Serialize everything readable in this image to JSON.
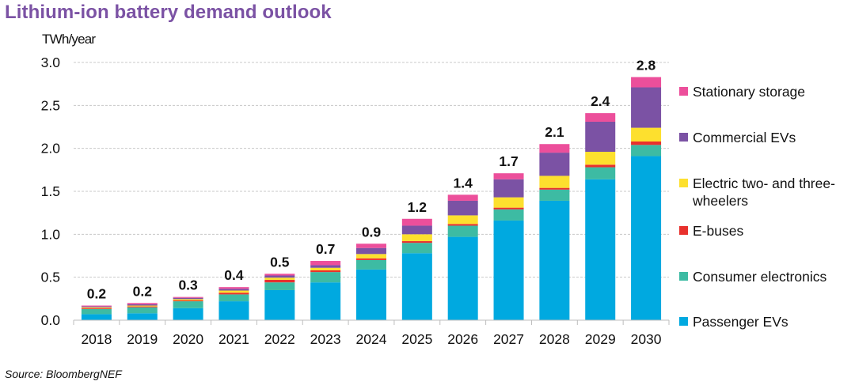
{
  "title": "Lithium-ion battery demand outlook",
  "source": "Source: BloombergNEF",
  "chart_data": {
    "type": "bar",
    "stacked": true,
    "title": "Lithium-ion battery demand outlook",
    "xlabel": "",
    "ylabel": "TWh/year",
    "ylim": [
      0,
      3.0
    ],
    "yticks": [
      "0.0",
      "0.5",
      "1.0",
      "1.5",
      "2.0",
      "2.5",
      "3.0"
    ],
    "ytick_values": [
      0,
      0.5,
      1.0,
      1.5,
      2.0,
      2.5,
      3.0
    ],
    "grid": "horizontal dashed",
    "legend_position": "right",
    "categories": [
      "2018",
      "2019",
      "2020",
      "2021",
      "2022",
      "2023",
      "2024",
      "2025",
      "2026",
      "2027",
      "2028",
      "2029",
      "2030"
    ],
    "totals_labels": [
      "0.2",
      "0.2",
      "0.3",
      "0.4",
      "0.5",
      "0.7",
      "0.9",
      "1.2",
      "1.4",
      "1.7",
      "2.1",
      "2.4",
      "2.8"
    ],
    "series": [
      {
        "name": "Passenger EVs",
        "color": "#00a9e0",
        "values": [
          0.07,
          0.08,
          0.14,
          0.22,
          0.35,
          0.44,
          0.59,
          0.78,
          0.97,
          1.16,
          1.39,
          1.64,
          1.91
        ]
      },
      {
        "name": "Consumer electronics",
        "color": "#3dbba3",
        "values": [
          0.06,
          0.07,
          0.08,
          0.08,
          0.09,
          0.12,
          0.11,
          0.12,
          0.13,
          0.13,
          0.13,
          0.14,
          0.13
        ]
      },
      {
        "name": "E-buses",
        "color": "#e8312d",
        "values": [
          0.01,
          0.01,
          0.01,
          0.02,
          0.03,
          0.02,
          0.02,
          0.02,
          0.02,
          0.02,
          0.02,
          0.03,
          0.04
        ]
      },
      {
        "name": "Electric two- and three-wheelers",
        "color": "#fde02e",
        "values": [
          0.01,
          0.01,
          0.015,
          0.025,
          0.025,
          0.03,
          0.05,
          0.08,
          0.1,
          0.12,
          0.14,
          0.15,
          0.16
        ]
      },
      {
        "name": "Commercial EVs",
        "color": "#7b52a4",
        "values": [
          0.01,
          0.015,
          0.015,
          0.02,
          0.025,
          0.03,
          0.07,
          0.1,
          0.17,
          0.21,
          0.27,
          0.35,
          0.47
        ]
      },
      {
        "name": "Stationary storage",
        "color": "#ec4f9b",
        "values": [
          0.01,
          0.015,
          0.01,
          0.02,
          0.02,
          0.05,
          0.05,
          0.08,
          0.07,
          0.07,
          0.1,
          0.1,
          0.12
        ]
      }
    ],
    "legend_order": [
      "Stationary storage",
      "Commercial EVs",
      "Electric two- and three-wheelers",
      "E-buses",
      "Consumer electronics",
      "Passenger EVs"
    ]
  }
}
